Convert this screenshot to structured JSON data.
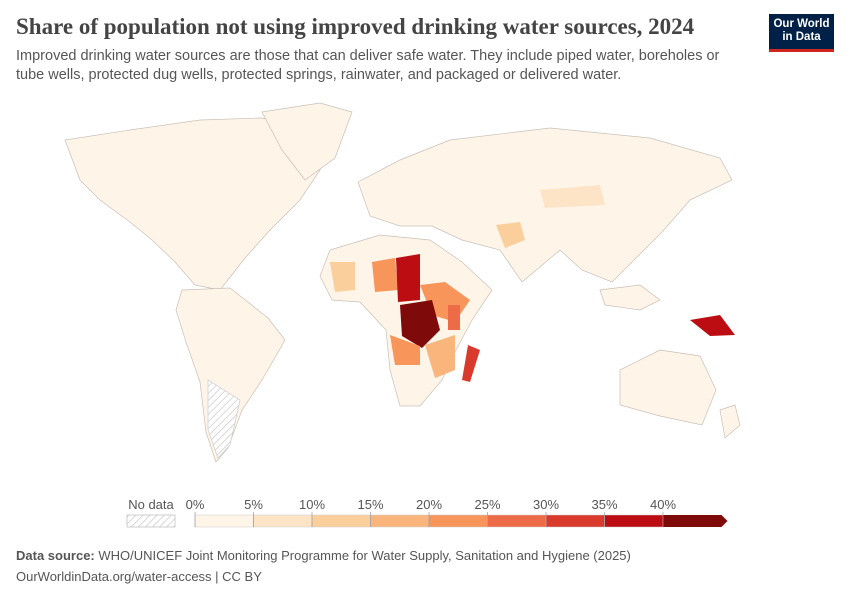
{
  "header": {
    "title": "Share of population not using improved drinking water sources, 2024",
    "subtitle_lines": [
      "Improved drinking water sources are those that can deliver safe water. They include piped water, boreholes or",
      "tube wells, protected dug wells, protected springs, rainwater, and packaged or delivered water."
    ]
  },
  "logo": {
    "lines": [
      "Our World",
      "in Data"
    ]
  },
  "legend": {
    "no_data_label": "No data",
    "ticks": [
      {
        "value": 0,
        "label": "0%"
      },
      {
        "value": 5,
        "label": "5%"
      },
      {
        "value": 10,
        "label": "10%"
      },
      {
        "value": 15,
        "label": "15%"
      },
      {
        "value": 20,
        "label": "20%"
      },
      {
        "value": 25,
        "label": "25%"
      },
      {
        "value": 30,
        "label": "30%"
      },
      {
        "value": 35,
        "label": "35%"
      },
      {
        "value": 40,
        "label": "40%"
      }
    ],
    "colors": [
      "#fef4e8",
      "#fde4c6",
      "#fbcf9c",
      "#f9b57c",
      "#f7955a",
      "#ee6b48",
      "#d93a2c",
      "#bb0d12",
      "#7f0a0a"
    ]
  },
  "footer": {
    "source_label": "Data source:",
    "source": "WHO/UNICEF Joint Monitoring Programme for Water Supply, Sanitation and Hygiene (2025)",
    "link": "OurWorldinData.org/water-access | CC BY"
  }
}
